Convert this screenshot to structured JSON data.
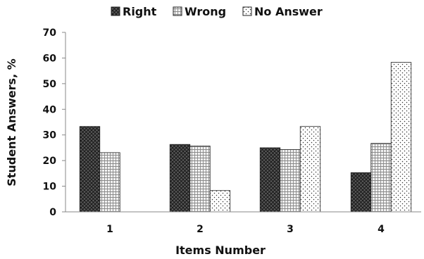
{
  "chart_data": {
    "type": "bar",
    "title": "",
    "xlabel": "Items Number",
    "ylabel": "Student Answers, %",
    "categories": [
      "1",
      "2",
      "3",
      "4"
    ],
    "ylim": [
      0,
      70
    ],
    "yticks": [
      "0",
      "10",
      "20",
      "30",
      "40",
      "50",
      "60",
      "70"
    ],
    "grid": false,
    "legend_position": "top",
    "series": [
      {
        "name": "Right",
        "values": [
          33.3,
          26.3,
          25.0,
          15.3
        ],
        "pattern": "crosshatch-dark"
      },
      {
        "name": "Wrong",
        "values": [
          23.1,
          25.7,
          24.3,
          26.7
        ],
        "pattern": "checker-light"
      },
      {
        "name": "No Answer",
        "values": [
          0,
          8.3,
          33.3,
          58.3
        ],
        "pattern": "dots"
      }
    ]
  }
}
